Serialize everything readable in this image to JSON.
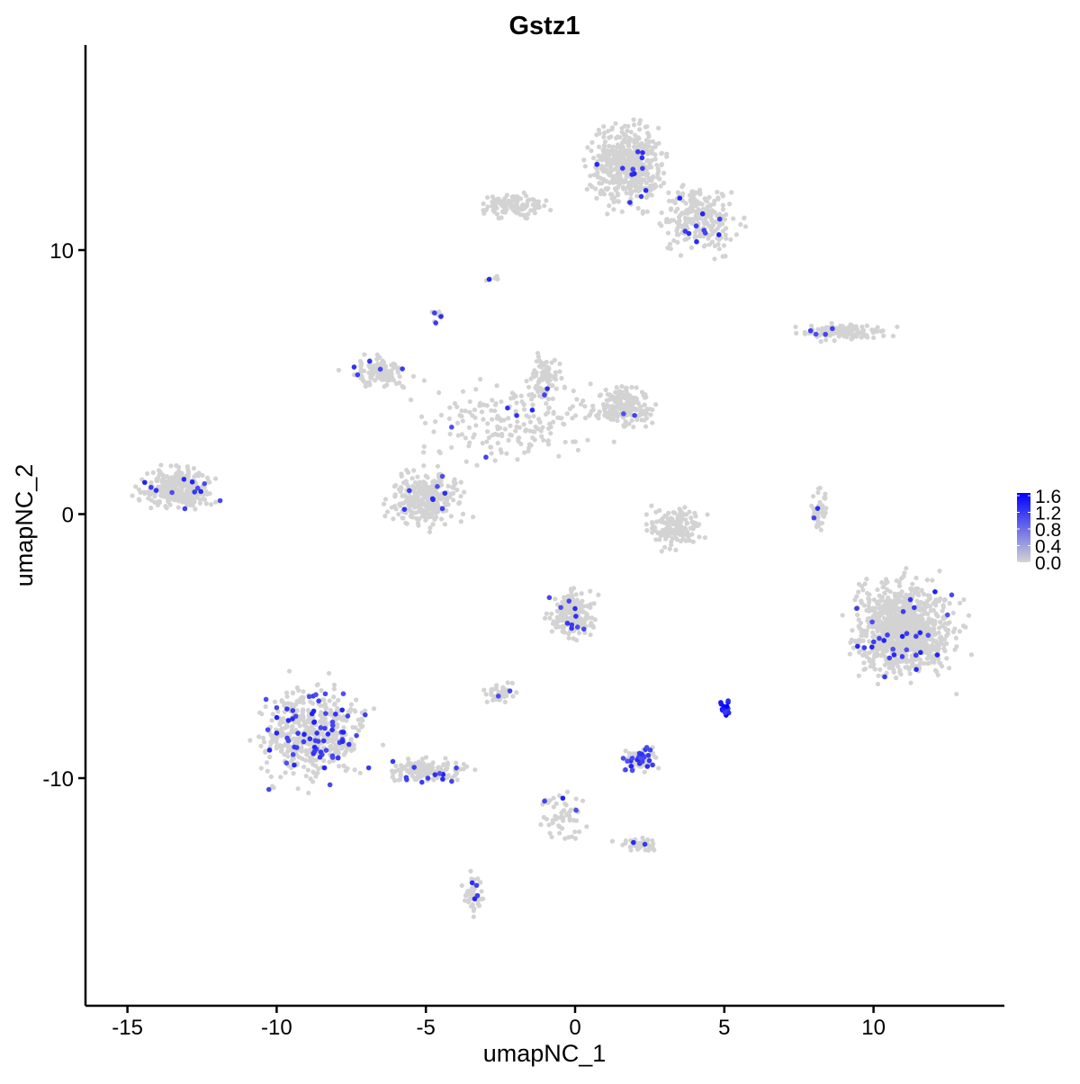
{
  "chart_data": {
    "type": "scatter",
    "title": "Gstz1",
    "xlabel": "umapNC_1",
    "ylabel": "umapNC_2",
    "xlim": [
      -16.5,
      14.3
    ],
    "ylim": [
      -18.5,
      17.9
    ],
    "xticks": [
      -15,
      -10,
      -5,
      0,
      5,
      10
    ],
    "yticks": [
      -10,
      0,
      10
    ],
    "xtick_labels": [
      "-15",
      "-10",
      "-5",
      "0",
      "5",
      "10"
    ],
    "ytick_labels": [
      "-10",
      "0",
      "10"
    ],
    "grid": false,
    "legend": {
      "placement": "right",
      "ticks": [
        "1.6",
        "1.2",
        "0.8",
        "0.4",
        "0.0"
      ],
      "range": [
        0,
        1.6
      ],
      "low_color": "#d3d3d3",
      "high_color": "#0000ff"
    },
    "clusters": [
      {
        "center": [
          1.7,
          13.2
        ],
        "spread": [
          0.8,
          1.0
        ],
        "cells": 500,
        "expressing": 12
      },
      {
        "center": [
          4.2,
          11.2
        ],
        "spread": [
          0.8,
          0.8
        ],
        "cells": 250,
        "expressing": 10
      },
      {
        "center": [
          -2.0,
          11.7
        ],
        "spread": [
          0.7,
          0.3
        ],
        "cells": 120,
        "expressing": 0
      },
      {
        "center": [
          8.9,
          6.9
        ],
        "spread": [
          1.0,
          0.2
        ],
        "cells": 120,
        "expressing": 4
      },
      {
        "center": [
          -6.6,
          5.4
        ],
        "spread": [
          0.6,
          0.4
        ],
        "cells": 120,
        "expressing": 5
      },
      {
        "center": [
          -5.0,
          0.6
        ],
        "spread": [
          0.8,
          0.7
        ],
        "cells": 300,
        "expressing": 8
      },
      {
        "center": [
          1.6,
          4.1
        ],
        "spread": [
          0.6,
          0.5
        ],
        "cells": 200,
        "expressing": 2
      },
      {
        "center": [
          -2.0,
          3.5
        ],
        "spread": [
          2.0,
          1.0
        ],
        "cells": 200,
        "expressing": 5
      },
      {
        "center": [
          -1.0,
          5.2
        ],
        "spread": [
          0.4,
          0.7
        ],
        "cells": 80,
        "expressing": 2
      },
      {
        "center": [
          -13.3,
          1.0
        ],
        "spread": [
          0.8,
          0.5
        ],
        "cells": 300,
        "expressing": 12
      },
      {
        "center": [
          3.3,
          -0.5
        ],
        "spread": [
          0.6,
          0.5
        ],
        "cells": 150,
        "expressing": 0
      },
      {
        "center": [
          11.0,
          -4.3
        ],
        "spread": [
          1.1,
          1.2
        ],
        "cells": 1000,
        "expressing": 30
      },
      {
        "center": [
          -8.8,
          -8.3
        ],
        "spread": [
          1.2,
          1.2
        ],
        "cells": 500,
        "expressing": 70
      },
      {
        "center": [
          -5.0,
          -9.7
        ],
        "spread": [
          0.9,
          0.3
        ],
        "cells": 150,
        "expressing": 12
      },
      {
        "center": [
          -0.1,
          -3.8
        ],
        "spread": [
          0.5,
          0.6
        ],
        "cells": 200,
        "expressing": 10
      },
      {
        "center": [
          -2.5,
          -6.8
        ],
        "spread": [
          0.35,
          0.2
        ],
        "cells": 50,
        "expressing": 2
      },
      {
        "center": [
          2.2,
          -9.3
        ],
        "spread": [
          0.4,
          0.3
        ],
        "cells": 80,
        "expressing": 25
      },
      {
        "center": [
          5.0,
          -7.3
        ],
        "spread": [
          0.1,
          0.2
        ],
        "cells": 15,
        "expressing": 15
      },
      {
        "center": [
          -0.4,
          -11.4
        ],
        "spread": [
          0.5,
          0.6
        ],
        "cells": 60,
        "expressing": 3
      },
      {
        "center": [
          2.2,
          -12.5
        ],
        "spread": [
          0.5,
          0.2
        ],
        "cells": 40,
        "expressing": 2
      },
      {
        "center": [
          -3.4,
          -14.4
        ],
        "spread": [
          0.25,
          0.5
        ],
        "cells": 50,
        "expressing": 4
      },
      {
        "center": [
          8.2,
          0.1
        ],
        "spread": [
          0.2,
          0.6
        ],
        "cells": 40,
        "expressing": 2
      },
      {
        "center": [
          -4.6,
          7.5
        ],
        "spread": [
          0.15,
          0.15
        ],
        "cells": 10,
        "expressing": 3
      },
      {
        "center": [
          -2.8,
          8.9
        ],
        "spread": [
          0.15,
          0.1
        ],
        "cells": 8,
        "expressing": 1
      }
    ]
  }
}
